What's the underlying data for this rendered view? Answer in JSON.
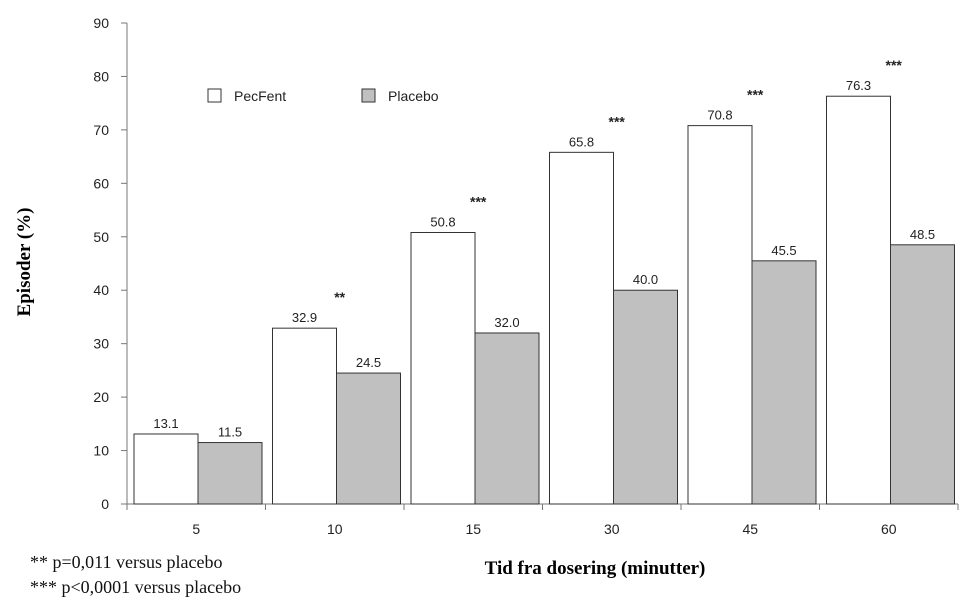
{
  "chart_data": {
    "type": "bar",
    "categories": [
      "5",
      "10",
      "15",
      "30",
      "45",
      "60"
    ],
    "series": [
      {
        "name": "PecFent",
        "values": [
          13.1,
          32.9,
          50.8,
          65.8,
          70.8,
          76.3
        ],
        "color": "#ffffff"
      },
      {
        "name": "Placebo",
        "values": [
          11.5,
          24.5,
          32.0,
          40.0,
          45.5,
          48.5
        ],
        "color": "#c0c0c0"
      }
    ],
    "data_labels": [
      [
        "13.1",
        "32.9",
        "50.8",
        "65.8",
        "70.8",
        "76.3"
      ],
      [
        "11.5",
        "24.5",
        "32.0",
        "40.0",
        "45.5",
        "48.5"
      ]
    ],
    "significance": [
      "",
      "**",
      "***",
      "***",
      "***",
      "***"
    ],
    "ylabel": "Episoder (%)",
    "xlabel": "Tid fra dosering (minutter)",
    "ylim": [
      0,
      90
    ],
    "yticks": [
      0,
      10,
      20,
      30,
      40,
      50,
      60,
      70,
      80,
      90
    ],
    "grid": false,
    "legend_position": "top-left"
  },
  "footnotes": [
    "** p=0,011 versus placebo",
    "*** p<0,0001 versus placebo"
  ]
}
